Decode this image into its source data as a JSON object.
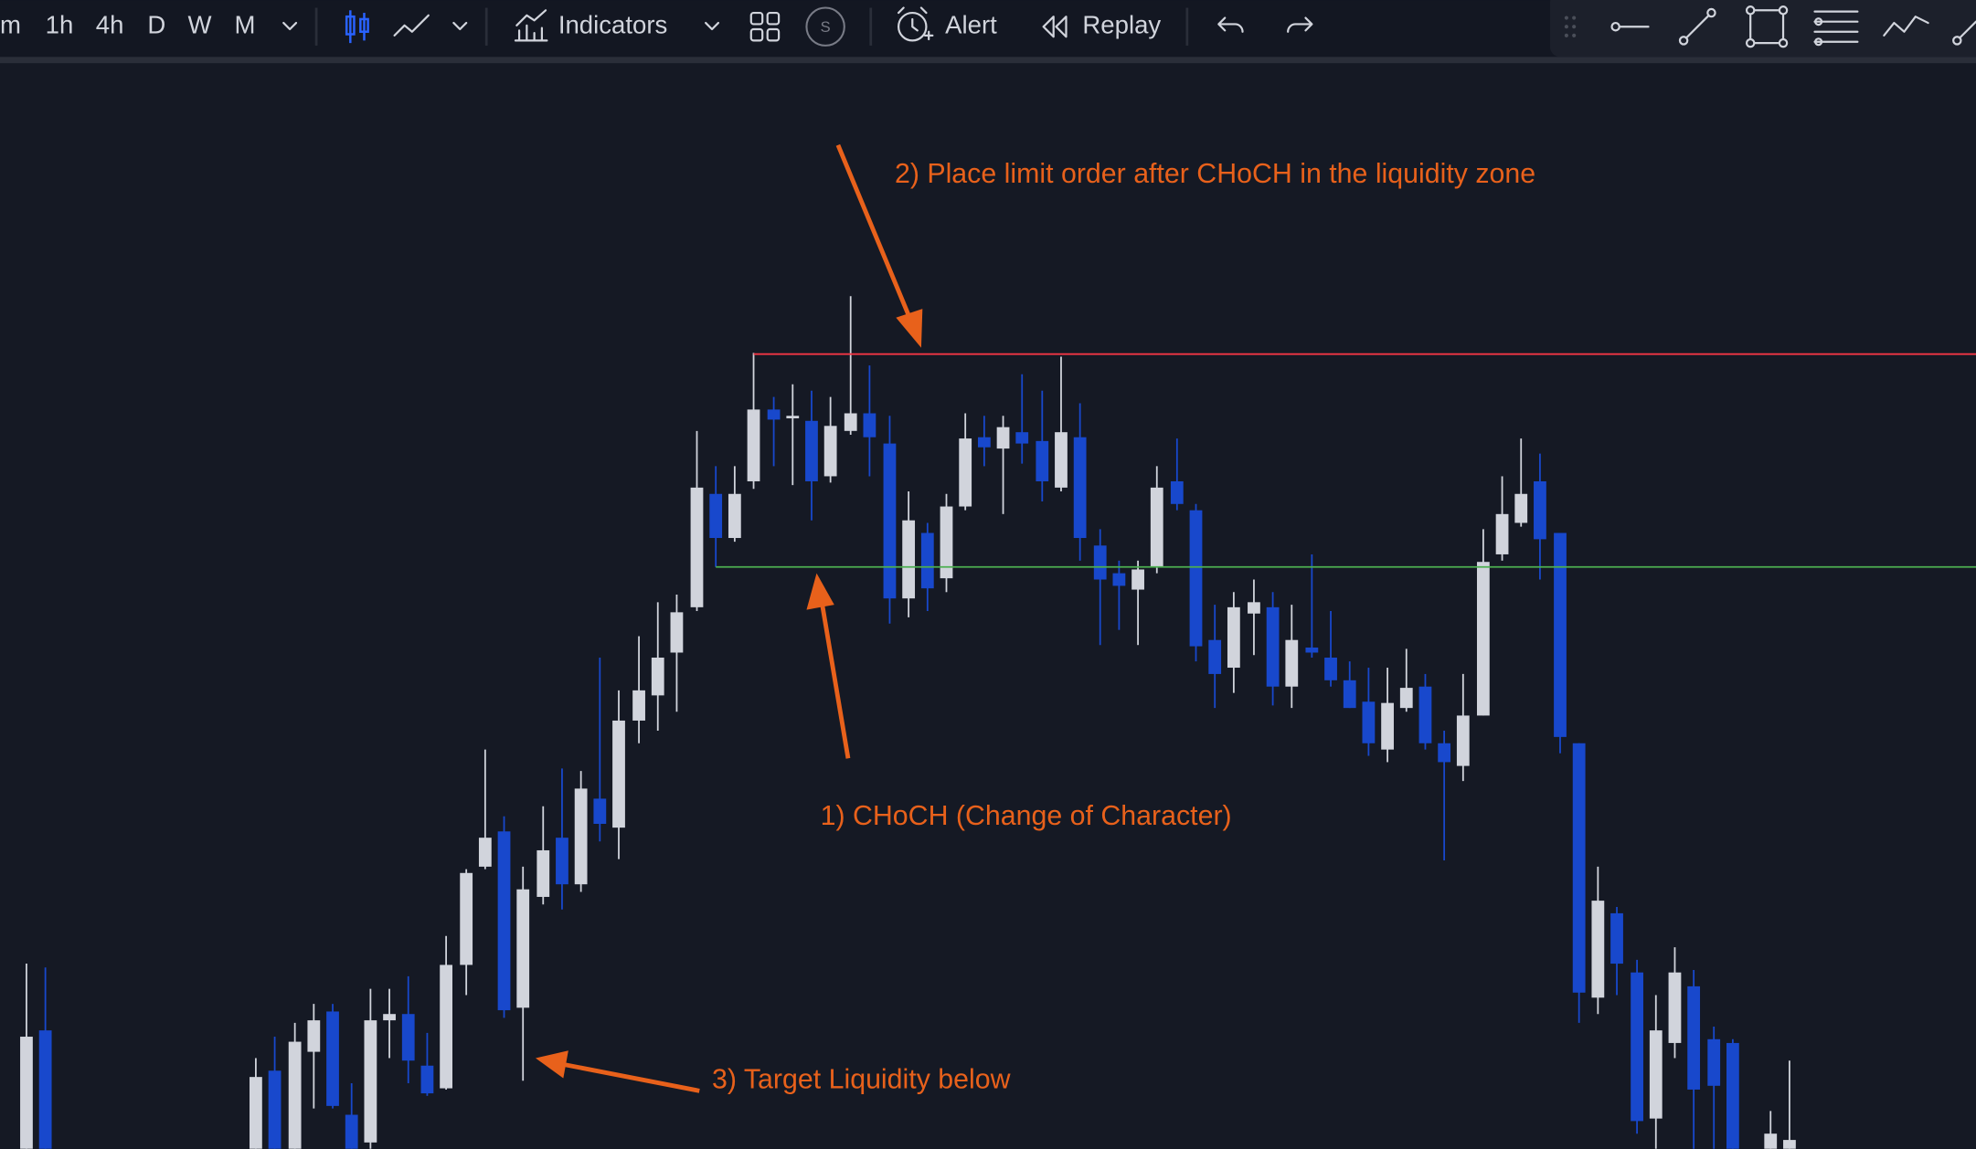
{
  "toolbar": {
    "intervals": [
      "m",
      "1h",
      "4h",
      "D",
      "W",
      "M"
    ],
    "indicators": "Indicators",
    "symbol_badge": "S",
    "alert": "Alert",
    "replay": "Replay"
  },
  "annotations": [
    "2) Place limit order after CHoCH in the liquidity zone",
    "1) CHoCH (Change of Character)",
    "3) Target Liquidity below"
  ]
}
